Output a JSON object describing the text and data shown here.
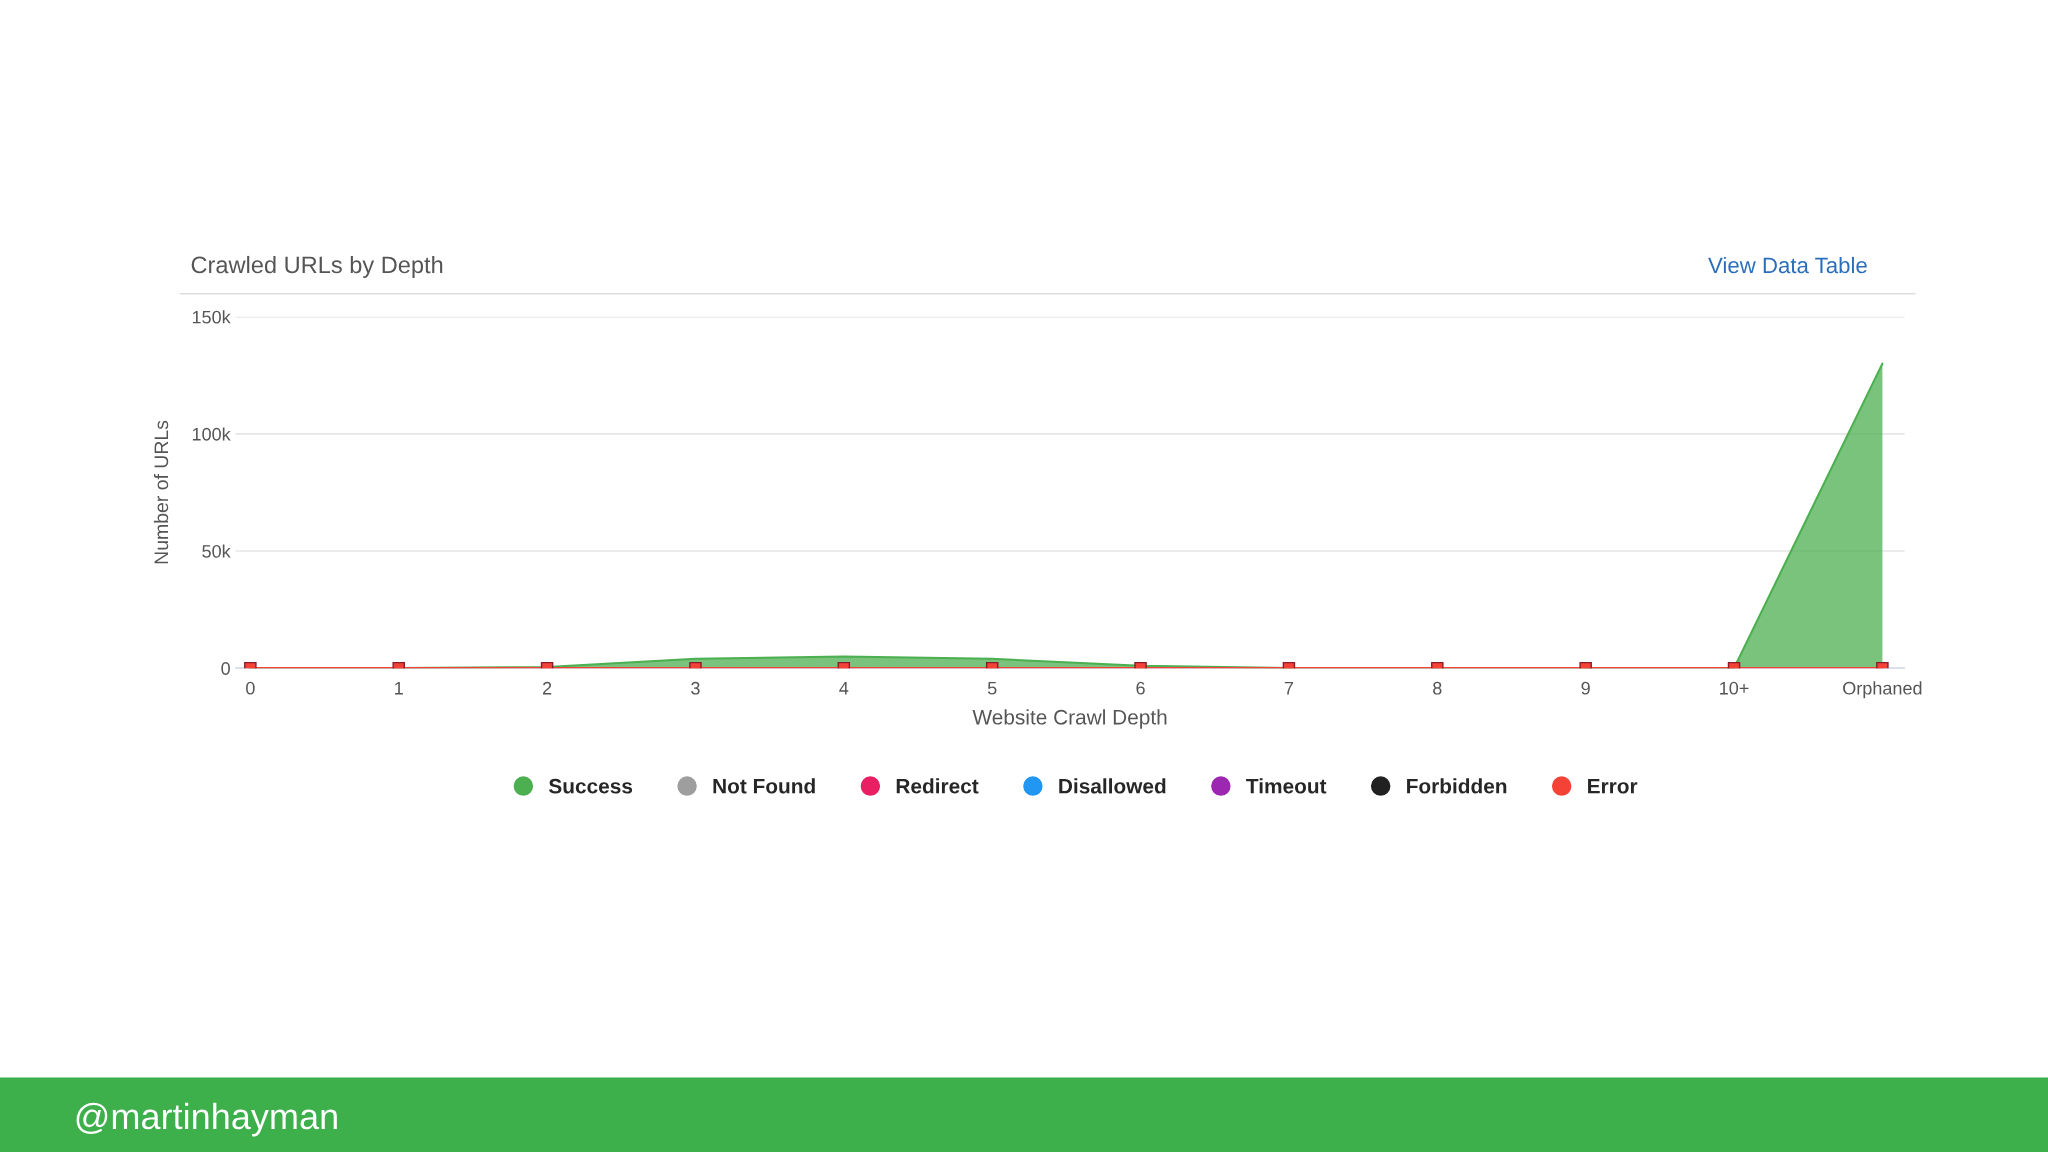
{
  "chart_data": {
    "type": "area",
    "title": "Crawled URLs by Depth",
    "xlabel": "Website Crawl Depth",
    "ylabel": "Number of URLs",
    "categories": [
      "0",
      "1",
      "2",
      "3",
      "4",
      "5",
      "6",
      "7",
      "8",
      "9",
      "10+",
      "Orphaned"
    ],
    "series": [
      {
        "name": "Success",
        "color": "#4caf50",
        "values": [
          0,
          0,
          500,
          4000,
          5000,
          4000,
          1000,
          0,
          0,
          0,
          0,
          130000
        ]
      },
      {
        "name": "Not Found",
        "type": "line",
        "color": "#9e9e9e",
        "values": [
          null,
          null,
          null,
          null,
          null,
          null,
          null,
          null,
          null,
          null,
          null,
          null
        ]
      },
      {
        "name": "Redirect",
        "type": "line",
        "color": "#e91e63",
        "values": [
          null,
          null,
          null,
          null,
          null,
          null,
          null,
          null,
          null,
          null,
          null,
          null
        ]
      },
      {
        "name": "Disallowed",
        "type": "line",
        "color": "#2196f3",
        "values": [
          null,
          null,
          null,
          null,
          null,
          null,
          null,
          null,
          null,
          null,
          null,
          null
        ]
      },
      {
        "name": "Timeout",
        "type": "line",
        "color": "#9c27b0",
        "values": [
          null,
          null,
          null,
          null,
          null,
          null,
          null,
          null,
          null,
          null,
          null,
          null
        ]
      },
      {
        "name": "Forbidden",
        "type": "line",
        "color": "#212121",
        "values": [
          null,
          null,
          null,
          null,
          null,
          null,
          null,
          null,
          null,
          null,
          null,
          null
        ]
      },
      {
        "name": "Error",
        "type": "line",
        "color": "#f44336",
        "marker": "square",
        "values": [
          0,
          0,
          0,
          0,
          0,
          0,
          0,
          0,
          0,
          0,
          0,
          0
        ]
      }
    ],
    "ylim": [
      0,
      150000
    ],
    "yticks": [
      {
        "value": 0,
        "label": "0"
      },
      {
        "value": 50000,
        "label": "50k"
      },
      {
        "value": 100000,
        "label": "100k"
      },
      {
        "value": 150000,
        "label": "150k"
      }
    ],
    "grid": "y",
    "legend": "bottom",
    "annotations": [
      "View Data Table",
      "@martinhayman"
    ]
  }
}
